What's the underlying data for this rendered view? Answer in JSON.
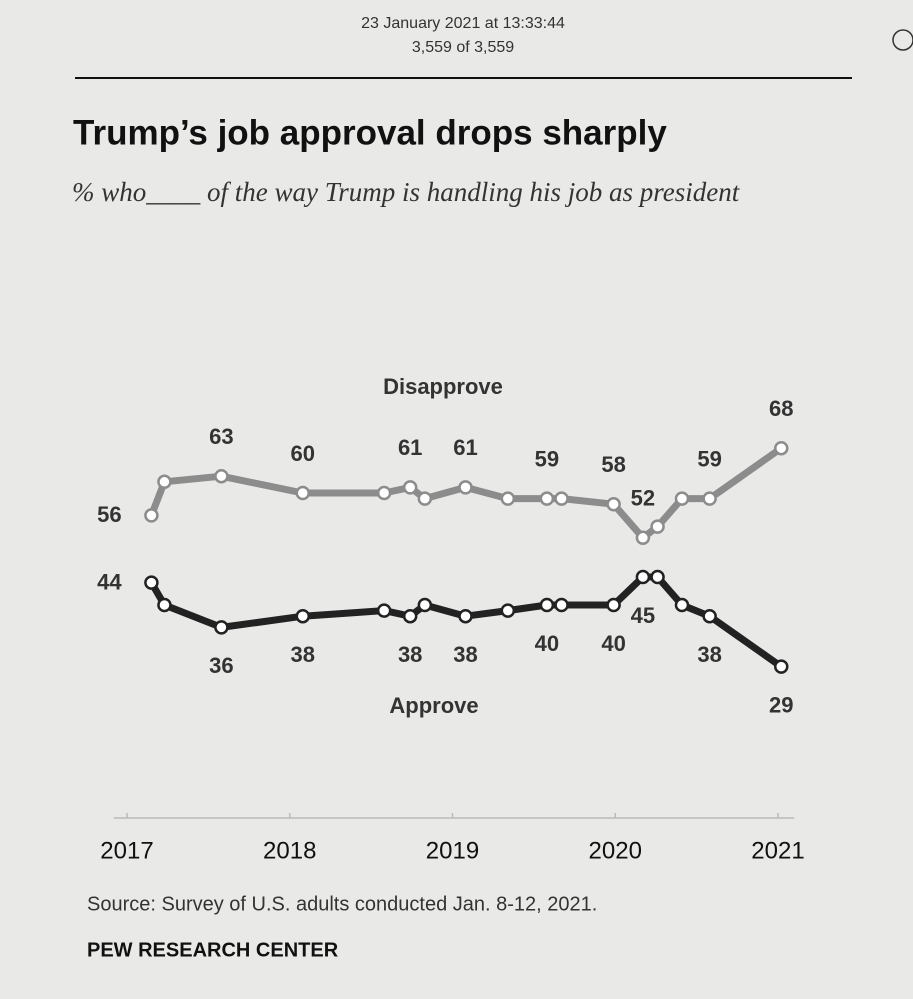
{
  "header": {
    "timestamp": "23 January 2021 at 13:33:44",
    "count": "3,559 of 3,559"
  },
  "chart_data": {
    "type": "line",
    "title": "Trump’s job approval drops sharply",
    "subtitle": "% who____ of the way Trump is handling his job as president",
    "x": [
      2017.15,
      2017.23,
      2017.58,
      2018.08,
      2018.58,
      2018.74,
      2018.83,
      2019.08,
      2019.34,
      2019.58,
      2019.67,
      2019.99,
      2020.17,
      2020.26,
      2020.41,
      2020.58,
      2021.02
    ],
    "xlim": [
      2016.95,
      2021.1
    ],
    "xticks": [
      2017,
      2018,
      2019,
      2020,
      2021
    ],
    "ylim": [
      20,
      75
    ],
    "series": [
      {
        "name": "Disapprove",
        "color": "#8c8c8c",
        "values": [
          56,
          62,
          63,
          60,
          60,
          61,
          59,
          61,
          59,
          59,
          59,
          58,
          52,
          54,
          59,
          59,
          68
        ],
        "value_labels": [
          "56",
          null,
          "63",
          "60",
          null,
          "61",
          null,
          "61",
          null,
          "59",
          null,
          "58",
          "52",
          null,
          null,
          "59",
          "68"
        ]
      },
      {
        "name": "Approve",
        "color": "#222222",
        "values": [
          44,
          40,
          36,
          38,
          39,
          38,
          40,
          38,
          39,
          40,
          40,
          40,
          45,
          45,
          40,
          38,
          29
        ],
        "value_labels": [
          "44",
          null,
          "36",
          "38",
          null,
          "38",
          null,
          "38",
          null,
          "40",
          null,
          "40",
          "45",
          null,
          null,
          "38",
          "29"
        ]
      }
    ],
    "source": "Source: Survey of U.S. adults conducted Jan. 8-12, 2021.",
    "credit": "PEW RESEARCH CENTER"
  }
}
